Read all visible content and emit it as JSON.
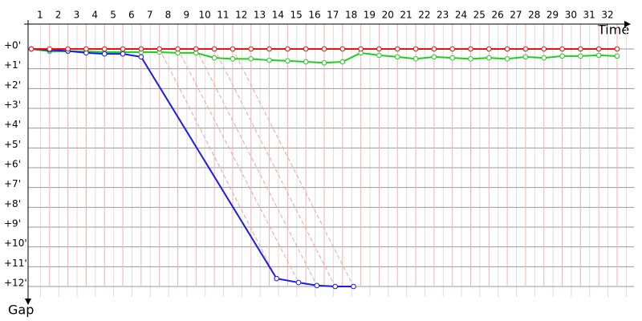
{
  "chart_data": {
    "type": "line",
    "x_label": "Time",
    "y_label": "Gap",
    "xlim": [
      0,
      32
    ],
    "xticks": [
      1,
      2,
      3,
      4,
      5,
      6,
      7,
      8,
      9,
      10,
      11,
      12,
      13,
      14,
      15,
      16,
      17,
      18,
      19,
      20,
      21,
      22,
      23,
      24,
      25,
      26,
      27,
      28,
      29,
      30,
      31,
      32
    ],
    "ylim": [
      0,
      12
    ],
    "yticks": [
      {
        "value": 0,
        "label": "+0'"
      },
      {
        "value": 1,
        "label": "+1'"
      },
      {
        "value": 2,
        "label": "+2'"
      },
      {
        "value": 3,
        "label": "+3'"
      },
      {
        "value": 4,
        "label": "+4'"
      },
      {
        "value": 5,
        "label": "+5'"
      },
      {
        "value": 6,
        "label": "+6'"
      },
      {
        "value": 7,
        "label": "+7'"
      },
      {
        "value": 8,
        "label": "+8'"
      },
      {
        "value": 9,
        "label": "+9'"
      },
      {
        "value": 10,
        "label": "+10'"
      },
      {
        "value": 11,
        "label": "+11'"
      },
      {
        "value": 12,
        "label": "+12'"
      }
    ],
    "grid": true,
    "series": [
      {
        "color": "#22cc22",
        "x": [
          0,
          1,
          2,
          3,
          4,
          5,
          6,
          7,
          8,
          9,
          10,
          11,
          12,
          13,
          14,
          15,
          16,
          17,
          18,
          19,
          20,
          21,
          22,
          23,
          24,
          25,
          26,
          27,
          28,
          29,
          30,
          31,
          32
        ],
        "values": [
          0,
          0.12,
          0.12,
          0.12,
          0.16,
          0.16,
          0.16,
          0.16,
          0.2,
          0.2,
          0.45,
          0.5,
          0.5,
          0.57,
          0.6,
          0.65,
          0.7,
          0.65,
          0.2,
          0.32,
          0.4,
          0.5,
          0.4,
          0.45,
          0.5,
          0.45,
          0.5,
          0.4,
          0.45,
          0.36,
          0.36,
          0.32,
          0.36
        ]
      },
      {
        "color": "#1a1aee",
        "x": [
          0,
          1,
          2,
          3,
          4,
          5,
          6,
          13.4,
          14.6,
          15.6,
          16.6,
          17.6
        ],
        "values": [
          0,
          0.05,
          0.1,
          0.2,
          0.25,
          0.25,
          0.4,
          11.6,
          11.8,
          11.95,
          12.0,
          12.0
        ]
      },
      {
        "color": "#ee1111",
        "x": [
          0,
          1,
          2,
          3,
          4,
          5,
          6,
          7,
          8,
          9,
          10,
          11,
          12,
          13,
          14,
          15,
          16,
          17,
          18,
          19,
          20,
          21,
          22,
          23,
          24,
          25,
          26,
          27,
          28,
          29,
          30,
          31,
          32
        ],
        "values": [
          0,
          0,
          0,
          0,
          0,
          0,
          0,
          0,
          0,
          0,
          0,
          0,
          0,
          0,
          0,
          0,
          0,
          0,
          0,
          0,
          0,
          0,
          0,
          0,
          0,
          0,
          0,
          0,
          0,
          0,
          0,
          0,
          0
        ]
      }
    ]
  }
}
